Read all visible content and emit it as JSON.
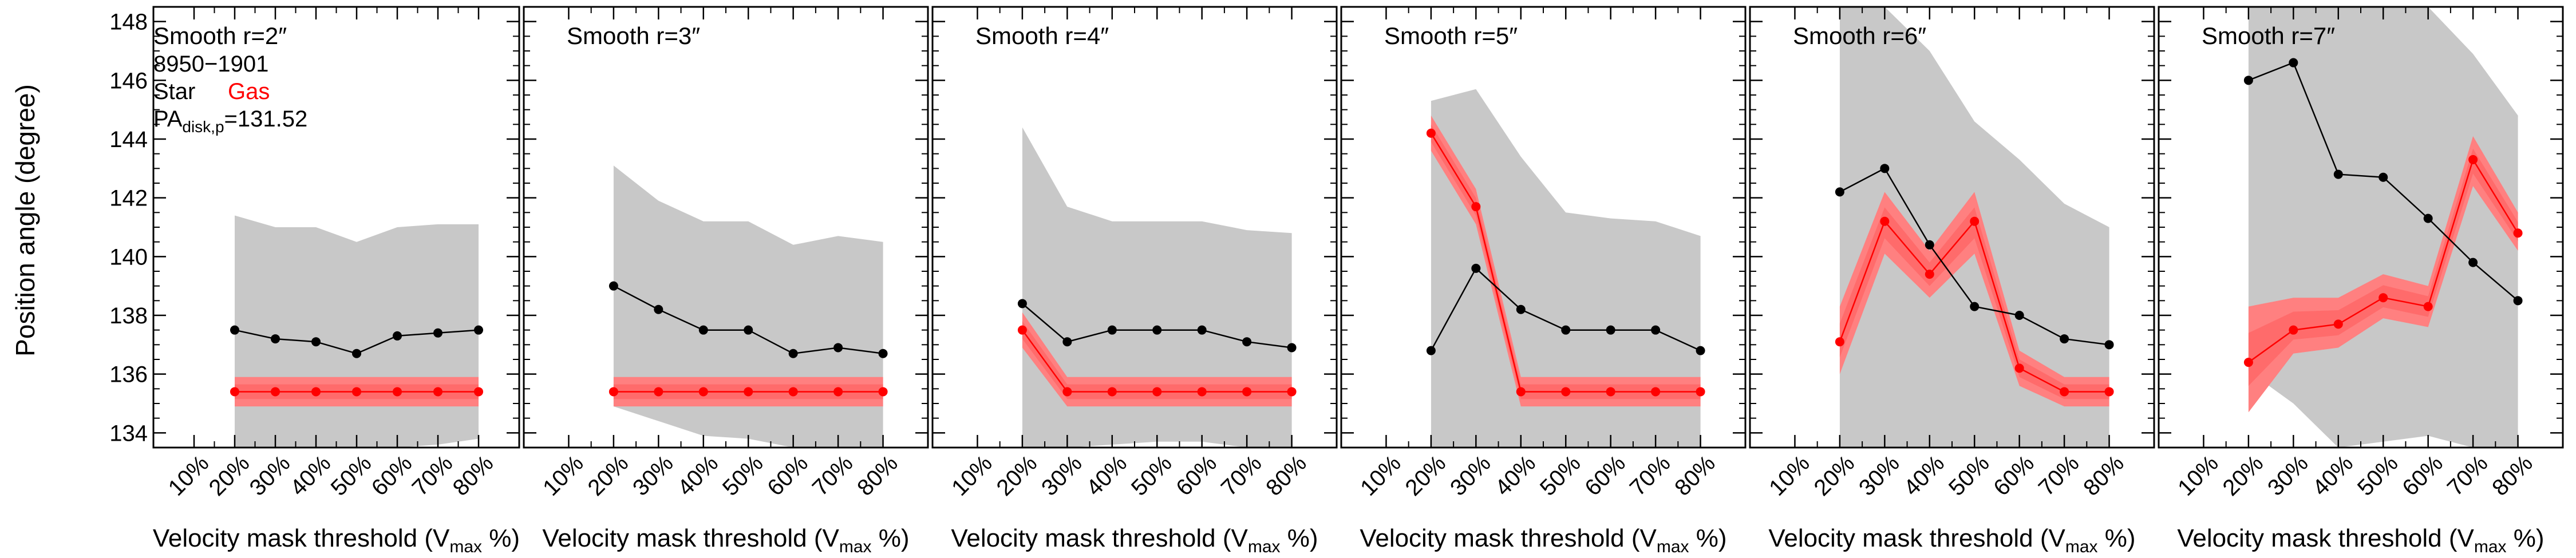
{
  "figure": {
    "ylabel": "Position angle (degree)",
    "xlabel_main": "Velocity mask threshold (V",
    "xlabel_sub": "max",
    "xlabel_tail": " %)",
    "object_id": "8950−1901",
    "legend_star": "Star",
    "legend_gas": "Gas",
    "pa_prefix": "PA",
    "pa_sub": "disk,p",
    "pa_value": "=131.52"
  },
  "colors": {
    "star": "#000000",
    "gas": "#ff0000",
    "gas_band": "#ff8080",
    "gas_band_inner": "#ff5a5a",
    "star_band": "#c8c8c8"
  },
  "chart_data": [
    {
      "type": "line",
      "title": "Smooth r=2″",
      "x": [
        "10%",
        "20%",
        "30%",
        "40%",
        "50%",
        "60%",
        "70%",
        "80%"
      ],
      "ylim": [
        133.5,
        148.5
      ],
      "yticks": [
        134,
        136,
        138,
        140,
        142,
        144,
        146,
        148
      ],
      "series": [
        {
          "name": "Star",
          "values": [
            null,
            137.5,
            137.2,
            137.1,
            136.7,
            137.3,
            137.4,
            137.5
          ],
          "band_lo": [
            null,
            133.5,
            133.5,
            133.5,
            133.5,
            133.5,
            133.6,
            133.8
          ],
          "band_hi": [
            null,
            141.4,
            141.0,
            141.0,
            140.5,
            141.0,
            141.1,
            141.1
          ]
        },
        {
          "name": "Gas",
          "values": [
            null,
            135.4,
            135.4,
            135.4,
            135.4,
            135.4,
            135.4,
            135.4
          ],
          "band_lo": [
            null,
            134.9,
            134.9,
            134.9,
            134.9,
            134.9,
            134.9,
            134.9
          ],
          "band_hi": [
            null,
            135.9,
            135.9,
            135.9,
            135.9,
            135.9,
            135.9,
            135.9
          ]
        }
      ]
    },
    {
      "type": "line",
      "title": "Smooth r=3″",
      "x": [
        "10%",
        "20%",
        "30%",
        "40%",
        "50%",
        "60%",
        "70%",
        "80%"
      ],
      "ylim": [
        133.5,
        148.5
      ],
      "series": [
        {
          "name": "Star",
          "values": [
            null,
            139.0,
            138.2,
            137.5,
            137.5,
            136.7,
            136.9,
            136.7
          ],
          "band_lo": [
            null,
            134.9,
            134.4,
            133.9,
            133.8,
            133.5,
            133.5,
            133.5
          ],
          "band_hi": [
            null,
            143.1,
            141.9,
            141.2,
            141.2,
            140.4,
            140.7,
            140.5
          ]
        },
        {
          "name": "Gas",
          "values": [
            null,
            135.4,
            135.4,
            135.4,
            135.4,
            135.4,
            135.4,
            135.4
          ],
          "band_lo": [
            null,
            134.9,
            134.9,
            134.9,
            134.9,
            134.9,
            134.9,
            134.9
          ],
          "band_hi": [
            null,
            135.9,
            135.9,
            135.9,
            135.9,
            135.9,
            135.9,
            135.9
          ]
        }
      ]
    },
    {
      "type": "line",
      "title": "Smooth r=4″",
      "x": [
        "10%",
        "20%",
        "30%",
        "40%",
        "50%",
        "60%",
        "70%",
        "80%"
      ],
      "ylim": [
        133.5,
        148.5
      ],
      "series": [
        {
          "name": "Star",
          "values": [
            null,
            138.4,
            137.1,
            137.5,
            137.5,
            137.5,
            137.1,
            136.9
          ],
          "band_lo": [
            null,
            133.5,
            133.5,
            133.6,
            133.7,
            133.7,
            133.5,
            133.5
          ],
          "band_hi": [
            null,
            144.4,
            141.7,
            141.2,
            141.2,
            141.2,
            140.9,
            140.8
          ]
        },
        {
          "name": "Gas",
          "values": [
            null,
            137.5,
            135.4,
            135.4,
            135.4,
            135.4,
            135.4,
            135.4
          ],
          "band_lo": [
            null,
            136.9,
            134.9,
            134.9,
            134.9,
            134.9,
            134.9,
            134.9
          ],
          "band_hi": [
            null,
            138.1,
            135.9,
            135.9,
            135.9,
            135.9,
            135.9,
            135.9
          ]
        }
      ]
    },
    {
      "type": "line",
      "title": "Smooth r=5″",
      "x": [
        "10%",
        "20%",
        "30%",
        "40%",
        "50%",
        "60%",
        "70%",
        "80%"
      ],
      "ylim": [
        133.5,
        148.5
      ],
      "series": [
        {
          "name": "Star",
          "values": [
            null,
            136.8,
            139.6,
            138.2,
            137.5,
            137.5,
            137.5,
            136.8
          ],
          "band_lo": [
            null,
            133.5,
            133.5,
            133.5,
            133.5,
            133.5,
            133.5,
            133.5
          ],
          "band_hi": [
            null,
            145.3,
            145.7,
            143.4,
            141.5,
            141.3,
            141.2,
            140.7
          ]
        },
        {
          "name": "Gas",
          "values": [
            null,
            144.2,
            141.7,
            135.4,
            135.4,
            135.4,
            135.4,
            135.4
          ],
          "band_lo": [
            null,
            143.6,
            141.1,
            134.9,
            134.9,
            134.9,
            134.9,
            134.9
          ],
          "band_hi": [
            null,
            144.8,
            142.3,
            135.9,
            135.9,
            135.9,
            135.9,
            135.9
          ]
        }
      ]
    },
    {
      "type": "line",
      "title": "Smooth r=6″",
      "x": [
        "10%",
        "20%",
        "30%",
        "40%",
        "50%",
        "60%",
        "70%",
        "80%"
      ],
      "ylim": [
        133.5,
        148.5
      ],
      "series": [
        {
          "name": "Star",
          "values": [
            null,
            142.2,
            143.0,
            140.4,
            138.3,
            138.0,
            137.2,
            137.0
          ],
          "band_lo": [
            null,
            133.5,
            133.5,
            133.5,
            133.5,
            133.5,
            133.5,
            133.5
          ],
          "band_hi": [
            null,
            148.5,
            148.5,
            147.0,
            144.6,
            143.3,
            141.8,
            141.0
          ]
        },
        {
          "name": "Gas",
          "values": [
            null,
            137.1,
            141.2,
            139.4,
            141.2,
            136.2,
            135.4,
            135.4
          ],
          "band_lo": [
            null,
            136.0,
            140.1,
            138.6,
            140.1,
            135.6,
            134.9,
            134.9
          ],
          "band_hi": [
            null,
            138.3,
            142.2,
            140.2,
            142.2,
            136.8,
            135.9,
            135.9
          ]
        }
      ]
    },
    {
      "type": "line",
      "title": "Smooth r=7″",
      "x": [
        "10%",
        "20%",
        "30%",
        "40%",
        "50%",
        "60%",
        "70%",
        "80%"
      ],
      "ylim": [
        133.5,
        148.5
      ],
      "series": [
        {
          "name": "Star",
          "values": [
            null,
            146.0,
            146.6,
            142.8,
            142.7,
            141.3,
            139.8,
            138.5
          ],
          "band_lo": [
            null,
            136.1,
            135.0,
            133.5,
            133.7,
            133.9,
            133.5,
            133.5
          ],
          "band_hi": [
            null,
            148.5,
            148.5,
            148.5,
            148.5,
            148.5,
            146.9,
            144.8
          ]
        },
        {
          "name": "Gas",
          "values": [
            null,
            136.4,
            137.5,
            137.7,
            138.6,
            138.3,
            143.3,
            140.8
          ],
          "band_lo": [
            null,
            134.7,
            136.7,
            136.9,
            137.9,
            137.6,
            142.4,
            140.2
          ],
          "band_hi": [
            null,
            138.3,
            138.6,
            138.6,
            139.4,
            139.0,
            144.1,
            141.5
          ]
        }
      ]
    }
  ]
}
